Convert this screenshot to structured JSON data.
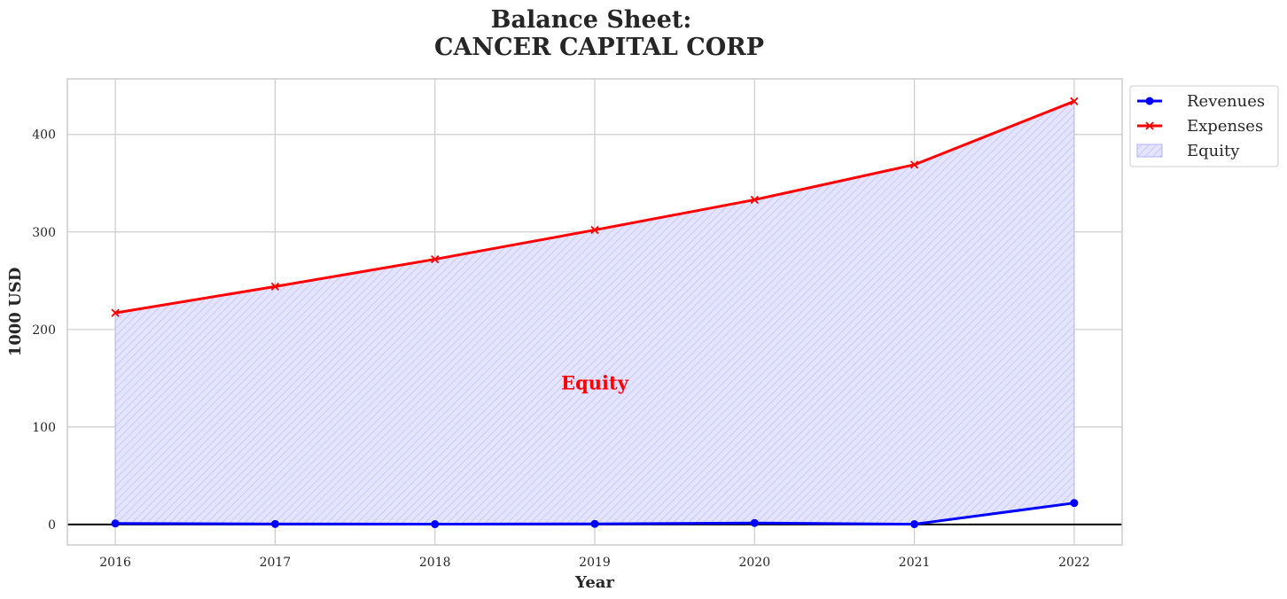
{
  "chart_data": {
    "type": "line",
    "title_line1": "Balance Sheet:",
    "title_line2": "CANCER CAPITAL CORP",
    "xlabel": "Year",
    "ylabel": "1000 USD",
    "x": [
      "2016",
      "2017",
      "2018",
      "2019",
      "2020",
      "2021",
      "2022"
    ],
    "xlim": [
      2015.7,
      2022.3
    ],
    "ylim": [
      -21,
      457
    ],
    "yticks": [
      0,
      100,
      200,
      300,
      400
    ],
    "grid": true,
    "legend_position": "outside-top-right",
    "series": [
      {
        "name": "Revenues",
        "values": [
          1,
          0.5,
          0.3,
          0.6,
          1.5,
          0.3,
          22
        ],
        "color": "#0000ff",
        "marker": "circle"
      },
      {
        "name": "Expenses",
        "values": [
          217,
          244,
          272,
          302,
          333,
          369,
          434
        ],
        "color": "#ff0000",
        "marker": "x"
      }
    ],
    "fill": {
      "name": "Equity",
      "between": [
        "Revenues",
        "Expenses"
      ],
      "color": "#ccccff",
      "hatch": "diagonal"
    },
    "annotation": {
      "text": "Equity",
      "x": 2019,
      "y": 145,
      "color": "#ff0000"
    }
  }
}
